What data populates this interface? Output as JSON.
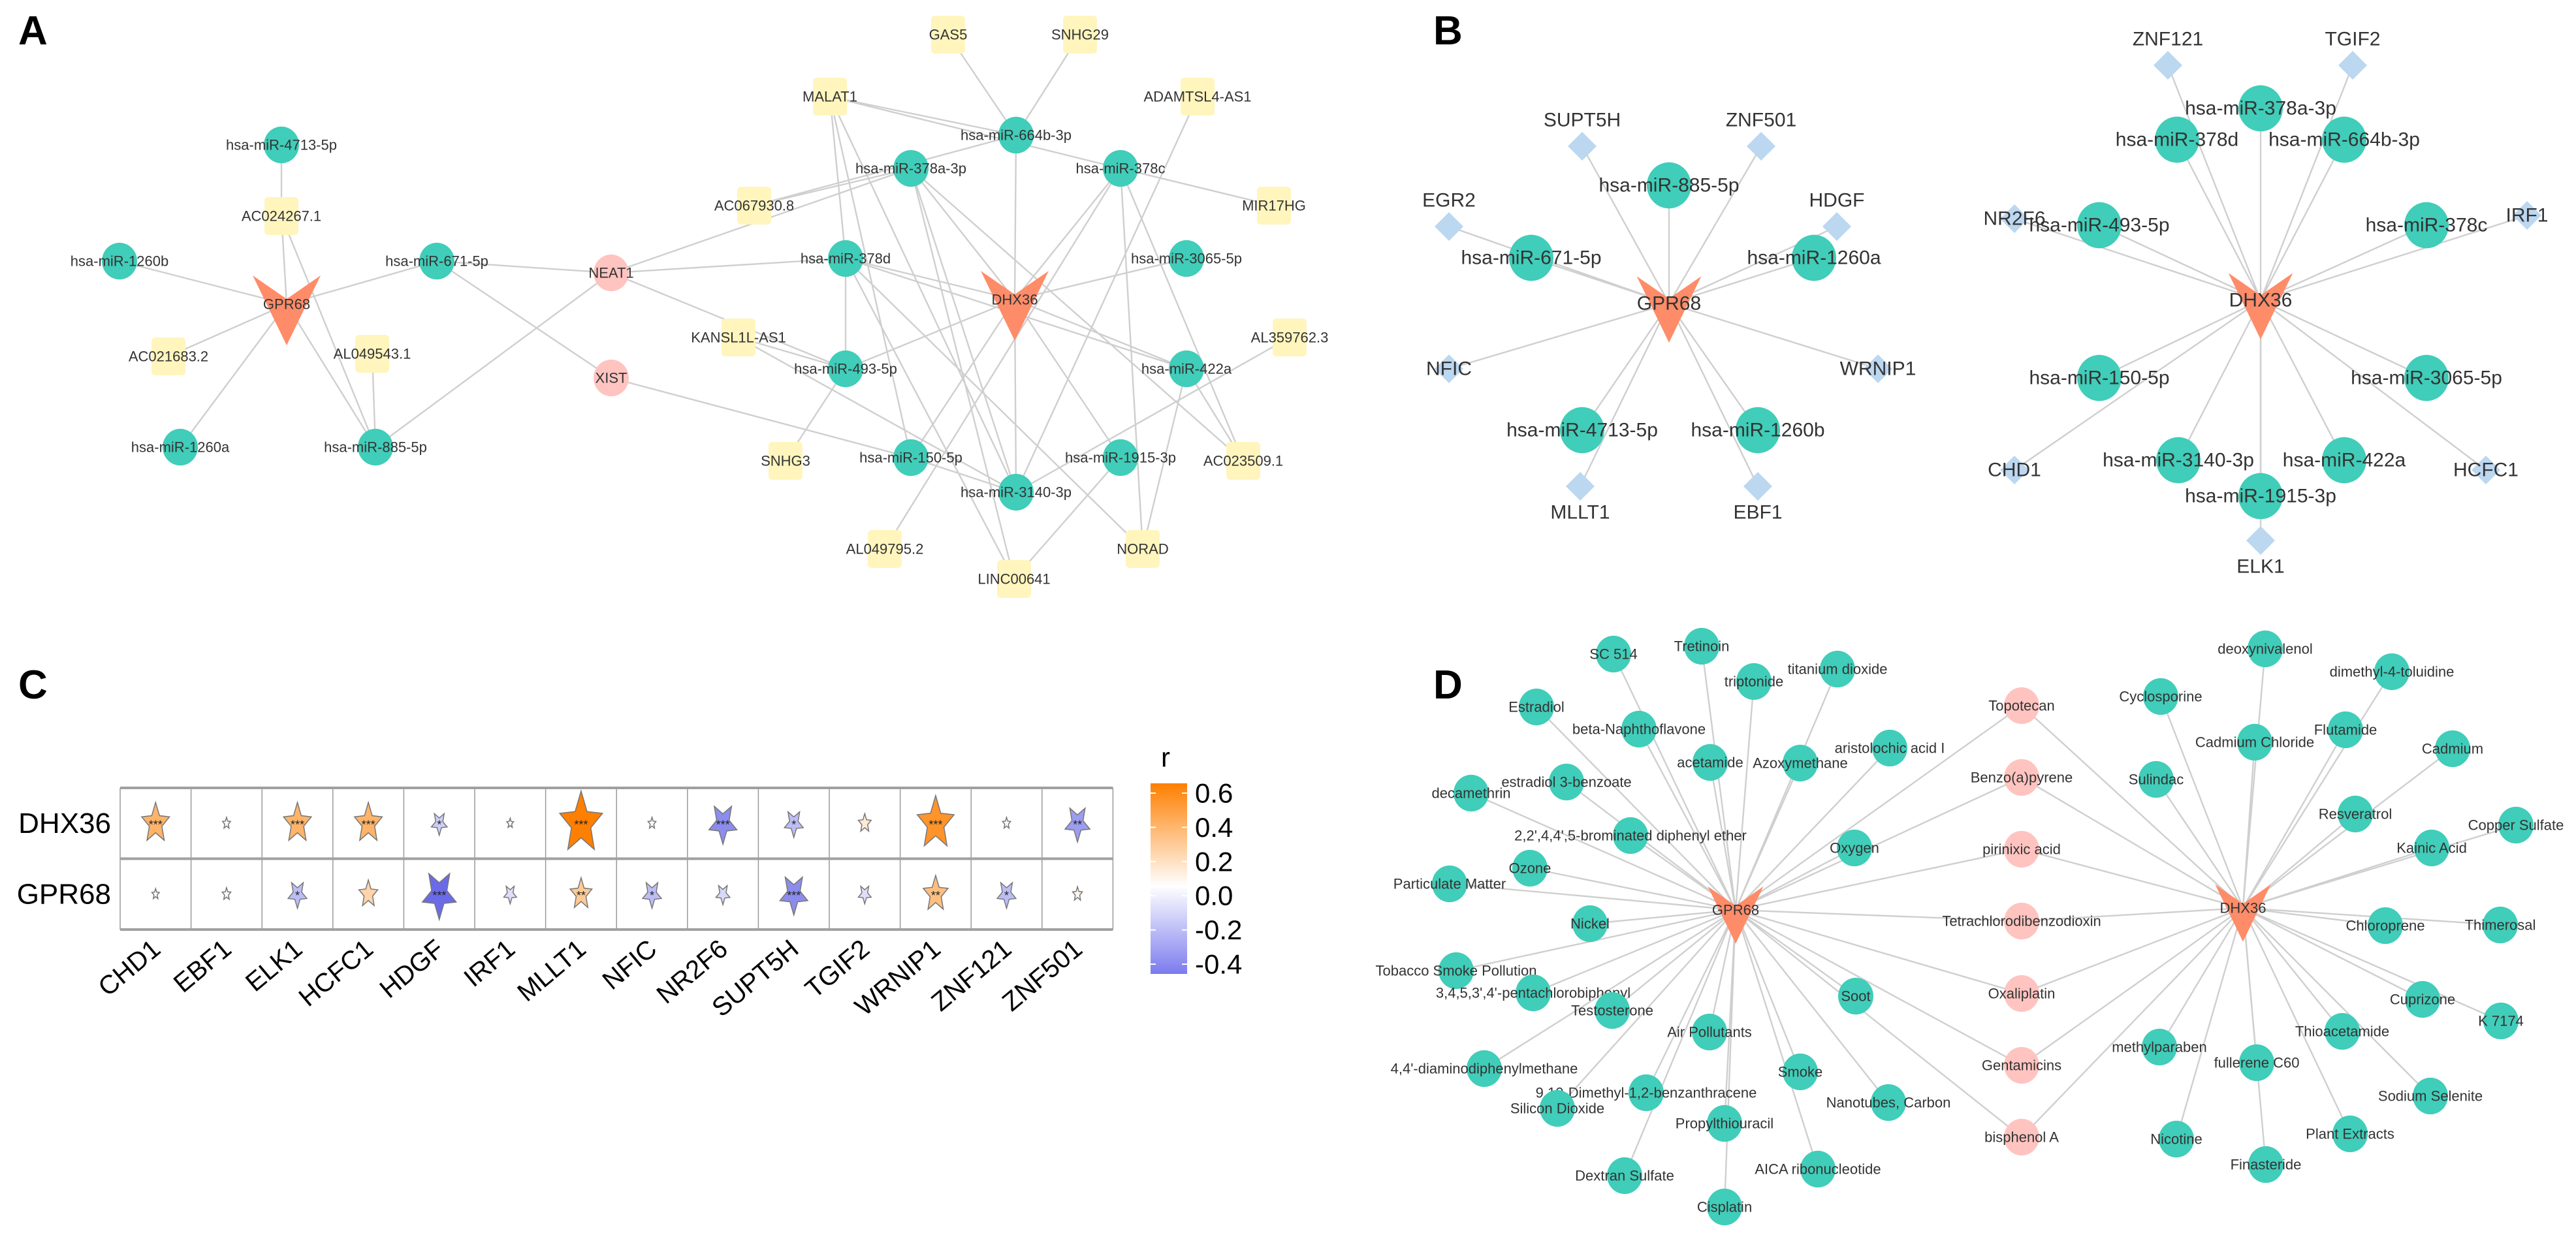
{
  "panel_letters": {
    "a": "A",
    "b": "B",
    "c": "C",
    "d": "D"
  },
  "colors": {
    "hub": "#ff8c69",
    "mirna": "#40cdb9",
    "lncrna": "#fff5bd",
    "shared": "#ffc4c0",
    "tf": "#bcd7f0",
    "chemical": "#40cdb9",
    "edge": "#cfcfcf",
    "positive": "#ff7f00",
    "negative": "#6b6be8"
  },
  "panelA": {
    "nodes": [
      {
        "id": "GPR68",
        "type": "hub"
      },
      {
        "id": "DHX36",
        "type": "hub"
      },
      {
        "id": "hsa-miR-4713-5p",
        "type": "mirna"
      },
      {
        "id": "hsa-miR-1260b",
        "type": "mirna"
      },
      {
        "id": "hsa-miR-671-5p",
        "type": "mirna"
      },
      {
        "id": "hsa-miR-1260a",
        "type": "mirna"
      },
      {
        "id": "hsa-miR-885-5p",
        "type": "mirna"
      },
      {
        "id": "AC024267.1",
        "type": "lncrna"
      },
      {
        "id": "AC021683.2",
        "type": "lncrna"
      },
      {
        "id": "AL049543.1",
        "type": "lncrna"
      },
      {
        "id": "NEAT1",
        "type": "shared"
      },
      {
        "id": "XIST",
        "type": "shared"
      },
      {
        "id": "GAS5",
        "type": "lncrna"
      },
      {
        "id": "SNHG29",
        "type": "lncrna"
      },
      {
        "id": "MALAT1",
        "type": "lncrna"
      },
      {
        "id": "ADAMTSL4-AS1",
        "type": "lncrna"
      },
      {
        "id": "AC067930.8",
        "type": "lncrna"
      },
      {
        "id": "MIR17HG",
        "type": "lncrna"
      },
      {
        "id": "KANSL1L-AS1",
        "type": "lncrna"
      },
      {
        "id": "AL359762.3",
        "type": "lncrna"
      },
      {
        "id": "SNHG3",
        "type": "lncrna"
      },
      {
        "id": "AC023509.1",
        "type": "lncrna"
      },
      {
        "id": "AL049795.2",
        "type": "lncrna"
      },
      {
        "id": "NORAD",
        "type": "lncrna"
      },
      {
        "id": "LINC00641",
        "type": "lncrna"
      },
      {
        "id": "hsa-miR-664b-3p",
        "type": "mirna"
      },
      {
        "id": "hsa-miR-378a-3p",
        "type": "mirna"
      },
      {
        "id": "hsa-miR-378c",
        "type": "mirna"
      },
      {
        "id": "hsa-miR-378d",
        "type": "mirna"
      },
      {
        "id": "hsa-miR-3065-5p",
        "type": "mirna"
      },
      {
        "id": "hsa-miR-493-5p",
        "type": "mirna"
      },
      {
        "id": "hsa-miR-422a",
        "type": "mirna"
      },
      {
        "id": "hsa-miR-150-5p",
        "type": "mirna"
      },
      {
        "id": "hsa-miR-1915-3p",
        "type": "mirna"
      },
      {
        "id": "hsa-miR-3140-3p",
        "type": "mirna"
      }
    ],
    "edges": [
      [
        "GPR68",
        "hsa-miR-1260b"
      ],
      [
        "GPR68",
        "hsa-miR-671-5p"
      ],
      [
        "GPR68",
        "hsa-miR-1260a"
      ],
      [
        "GPR68",
        "hsa-miR-885-5p"
      ],
      [
        "GPR68",
        "AC024267.1"
      ],
      [
        "GPR68",
        "AC021683.2"
      ],
      [
        "AC024267.1",
        "hsa-miR-4713-5p"
      ],
      [
        "AC024267.1",
        "hsa-miR-885-5p"
      ],
      [
        "AL049543.1",
        "hsa-miR-885-5p"
      ],
      [
        "hsa-miR-671-5p",
        "NEAT1"
      ],
      [
        "hsa-miR-671-5p",
        "XIST"
      ],
      [
        "NEAT1",
        "hsa-miR-885-5p"
      ],
      [
        "NEAT1",
        "hsa-miR-378a-3p"
      ],
      [
        "NEAT1",
        "hsa-miR-493-5p"
      ],
      [
        "NEAT1",
        "hsa-miR-378d"
      ],
      [
        "XIST",
        "hsa-miR-150-5p"
      ],
      [
        "DHX36",
        "hsa-miR-664b-3p"
      ],
      [
        "DHX36",
        "hsa-miR-378a-3p"
      ],
      [
        "DHX36",
        "hsa-miR-378c"
      ],
      [
        "DHX36",
        "hsa-miR-378d"
      ],
      [
        "DHX36",
        "hsa-miR-3065-5p"
      ],
      [
        "DHX36",
        "hsa-miR-493-5p"
      ],
      [
        "DHX36",
        "hsa-miR-422a"
      ],
      [
        "DHX36",
        "hsa-miR-150-5p"
      ],
      [
        "DHX36",
        "hsa-miR-1915-3p"
      ],
      [
        "DHX36",
        "hsa-miR-3140-3p"
      ],
      [
        "GAS5",
        "hsa-miR-664b-3p"
      ],
      [
        "SNHG29",
        "hsa-miR-664b-3p"
      ],
      [
        "MALAT1",
        "hsa-miR-664b-3p"
      ],
      [
        "MALAT1",
        "hsa-miR-378c"
      ],
      [
        "MALAT1",
        "hsa-miR-378d"
      ],
      [
        "MALAT1",
        "hsa-miR-150-5p"
      ],
      [
        "MALAT1",
        "hsa-miR-3140-3p"
      ],
      [
        "ADAMTSL4-AS1",
        "hsa-miR-3140-3p"
      ],
      [
        "AC067930.8",
        "hsa-miR-664b-3p"
      ],
      [
        "AC067930.8",
        "hsa-miR-378a-3p"
      ],
      [
        "MIR17HG",
        "hsa-miR-378c"
      ],
      [
        "hsa-miR-378a-3p",
        "LINC00641"
      ],
      [
        "hsa-miR-378a-3p",
        "AC023509.1"
      ],
      [
        "hsa-miR-378a-3p",
        "hsa-miR-3140-3p"
      ],
      [
        "hsa-miR-378c",
        "NORAD"
      ],
      [
        "hsa-miR-378c",
        "AC023509.1"
      ],
      [
        "hsa-miR-378c",
        "AL049795.2"
      ],
      [
        "hsa-miR-378d",
        "hsa-miR-493-5p"
      ],
      [
        "hsa-miR-378d",
        "LINC00641"
      ],
      [
        "hsa-miR-378d",
        "NORAD"
      ],
      [
        "hsa-miR-378d",
        "hsa-miR-422a"
      ],
      [
        "KANSL1L-AS1",
        "hsa-miR-493-5p"
      ],
      [
        "KANSL1L-AS1",
        "hsa-miR-3140-3p"
      ],
      [
        "AL359762.3",
        "hsa-miR-3140-3p"
      ],
      [
        "hsa-miR-422a",
        "AC023509.1"
      ],
      [
        "hsa-miR-422a",
        "NORAD"
      ],
      [
        "SNHG3",
        "hsa-miR-493-5p"
      ],
      [
        "hsa-miR-150-5p",
        "hsa-miR-3140-3p"
      ],
      [
        "hsa-miR-1915-3p",
        "LINC00641"
      ]
    ]
  },
  "panelB": {
    "nodes": [
      {
        "id": "GPR68",
        "type": "hub"
      },
      {
        "id": "SUPT5H",
        "type": "tf"
      },
      {
        "id": "ZNF501",
        "type": "tf"
      },
      {
        "id": "EGR2",
        "type": "tf"
      },
      {
        "id": "HDGF",
        "type": "tf"
      },
      {
        "id": "NFIC",
        "type": "tf"
      },
      {
        "id": "WRNIP1",
        "type": "tf"
      },
      {
        "id": "MLLT1",
        "type": "tf"
      },
      {
        "id": "EBF1",
        "type": "tf"
      },
      {
        "id": "hsa-miR-885-5p",
        "type": "mirna"
      },
      {
        "id": "hsa-miR-671-5p",
        "type": "mirna"
      },
      {
        "id": "hsa-miR-1260a",
        "type": "mirna"
      },
      {
        "id": "hsa-miR-4713-5p",
        "type": "mirna"
      },
      {
        "id": "hsa-miR-1260b",
        "type": "mirna"
      },
      {
        "id": "DHX36",
        "type": "hub"
      },
      {
        "id": "ZNF121",
        "type": "tf"
      },
      {
        "id": "TGIF2",
        "type": "tf"
      },
      {
        "id": "NR2F6",
        "type": "tf"
      },
      {
        "id": "IRF1",
        "type": "tf"
      },
      {
        "id": "CHD1",
        "type": "tf"
      },
      {
        "id": "HCFC1",
        "type": "tf"
      },
      {
        "id": "ELK1",
        "type": "tf"
      },
      {
        "id": "hsa-miR-378a-3p",
        "type": "mirna"
      },
      {
        "id": "hsa-miR-378d",
        "type": "mirna"
      },
      {
        "id": "hsa-miR-664b-3p",
        "type": "mirna"
      },
      {
        "id": "hsa-miR-493-5p",
        "type": "mirna"
      },
      {
        "id": "hsa-miR-378c",
        "type": "mirna"
      },
      {
        "id": "hsa-miR-150-5p",
        "type": "mirna"
      },
      {
        "id": "hsa-miR-3065-5p",
        "type": "mirna"
      },
      {
        "id": "hsa-miR-3140-3p",
        "type": "mirna"
      },
      {
        "id": "hsa-miR-422a",
        "type": "mirna"
      },
      {
        "id": "hsa-miR-1915-3p",
        "type": "mirna"
      }
    ],
    "edges": [
      [
        "GPR68",
        "SUPT5H"
      ],
      [
        "GPR68",
        "ZNF501"
      ],
      [
        "GPR68",
        "EGR2"
      ],
      [
        "GPR68",
        "HDGF"
      ],
      [
        "GPR68",
        "NFIC"
      ],
      [
        "GPR68",
        "WRNIP1"
      ],
      [
        "GPR68",
        "MLLT1"
      ],
      [
        "GPR68",
        "EBF1"
      ],
      [
        "GPR68",
        "hsa-miR-885-5p"
      ],
      [
        "GPR68",
        "hsa-miR-671-5p"
      ],
      [
        "GPR68",
        "hsa-miR-1260a"
      ],
      [
        "GPR68",
        "hsa-miR-4713-5p"
      ],
      [
        "GPR68",
        "hsa-miR-1260b"
      ],
      [
        "DHX36",
        "ZNF121"
      ],
      [
        "DHX36",
        "TGIF2"
      ],
      [
        "DHX36",
        "NR2F6"
      ],
      [
        "DHX36",
        "IRF1"
      ],
      [
        "DHX36",
        "CHD1"
      ],
      [
        "DHX36",
        "HCFC1"
      ],
      [
        "DHX36",
        "ELK1"
      ],
      [
        "DHX36",
        "hsa-miR-378a-3p"
      ],
      [
        "DHX36",
        "hsa-miR-378d"
      ],
      [
        "DHX36",
        "hsa-miR-664b-3p"
      ],
      [
        "DHX36",
        "hsa-miR-493-5p"
      ],
      [
        "DHX36",
        "hsa-miR-378c"
      ],
      [
        "DHX36",
        "hsa-miR-150-5p"
      ],
      [
        "DHX36",
        "hsa-miR-3065-5p"
      ],
      [
        "DHX36",
        "hsa-miR-3140-3p"
      ],
      [
        "DHX36",
        "hsa-miR-422a"
      ],
      [
        "DHX36",
        "hsa-miR-1915-3p"
      ]
    ]
  },
  "chart_data": {
    "type": "heatmap",
    "title": "",
    "legend_title": "r",
    "rows": [
      "DHX36",
      "GPR68"
    ],
    "columns": [
      "CHD1",
      "EBF1",
      "ELK1",
      "HCFC1",
      "HDGF",
      "IRF1",
      "MLLT1",
      "NFIC",
      "NR2F6",
      "SUPT5H",
      "TGIF2",
      "WRNIP1",
      "ZNF121",
      "ZNF501"
    ],
    "values": [
      [
        0.35,
        0.02,
        0.35,
        0.35,
        -0.15,
        0.0,
        0.6,
        0.02,
        -0.35,
        -0.2,
        0.1,
        0.5,
        0.02,
        -0.3
      ],
      [
        0.01,
        0.03,
        -0.2,
        0.2,
        -0.45,
        -0.1,
        0.25,
        -0.2,
        -0.12,
        -0.35,
        -0.1,
        0.3,
        -0.2,
        0.05
      ]
    ],
    "significance": [
      [
        "***",
        "",
        "***",
        "***",
        "*",
        "",
        "***",
        "",
        "***",
        "*",
        "",
        "***",
        "",
        "**"
      ],
      [
        "",
        "",
        "*",
        "",
        "***",
        "",
        "**",
        "*",
        "",
        "***",
        "",
        "**",
        "*",
        ""
      ]
    ],
    "color_range": [
      -0.45,
      0.6
    ],
    "legend_ticks": [
      {
        "value": 0.6,
        "label": "0.6"
      },
      {
        "value": 0.4,
        "label": "0.4"
      },
      {
        "value": 0.2,
        "label": "0.2"
      },
      {
        "value": 0.0,
        "label": "0.0"
      },
      {
        "value": -0.2,
        "label": "-0.2"
      },
      {
        "value": -0.4,
        "label": "-0.4"
      }
    ],
    "legend_placement": "right"
  },
  "panelD": {
    "nodes": [
      {
        "id": "GPR68",
        "type": "hub"
      },
      {
        "id": "DHX36",
        "type": "hub"
      },
      {
        "id": "SC 514",
        "type": "chemical"
      },
      {
        "id": "Tretinoin",
        "type": "chemical"
      },
      {
        "id": "titanium dioxide",
        "type": "chemical"
      },
      {
        "id": "triptonide",
        "type": "chemical"
      },
      {
        "id": "Estradiol",
        "type": "chemical"
      },
      {
        "id": "beta-Naphthoflavone",
        "type": "chemical"
      },
      {
        "id": "acetamide",
        "type": "chemical"
      },
      {
        "id": "Azoxymethane",
        "type": "chemical"
      },
      {
        "id": "aristolochic acid I",
        "type": "chemical"
      },
      {
        "id": "estradiol 3-benzoate",
        "type": "chemical"
      },
      {
        "id": "decamethrin",
        "type": "chemical"
      },
      {
        "id": "2,2',4,4',5-brominated diphenyl ether",
        "type": "chemical"
      },
      {
        "id": "Ozone",
        "type": "chemical"
      },
      {
        "id": "Particulate Matter",
        "type": "chemical"
      },
      {
        "id": "Oxygen",
        "type": "chemical"
      },
      {
        "id": "Nickel",
        "type": "chemical"
      },
      {
        "id": "Tobacco Smoke Pollution",
        "type": "chemical"
      },
      {
        "id": "3,4,5,3',4'-pentachlorobiphenyl",
        "type": "chemical"
      },
      {
        "id": "Testosterone",
        "type": "chemical"
      },
      {
        "id": "Soot",
        "type": "chemical"
      },
      {
        "id": "Air Pollutants",
        "type": "chemical"
      },
      {
        "id": "4,4'-diaminodiphenylmethane",
        "type": "chemical"
      },
      {
        "id": "Smoke",
        "type": "chemical"
      },
      {
        "id": "9,10-Dimethyl-1,2-benzanthracene",
        "type": "chemical"
      },
      {
        "id": "Silicon Dioxide",
        "type": "chemical"
      },
      {
        "id": "Nanotubes, Carbon",
        "type": "chemical"
      },
      {
        "id": "Propylthiouracil",
        "type": "chemical"
      },
      {
        "id": "Dextran Sulfate",
        "type": "chemical"
      },
      {
        "id": "AICA ribonucleotide",
        "type": "chemical"
      },
      {
        "id": "Cisplatin",
        "type": "chemical"
      },
      {
        "id": "Topotecan",
        "type": "shared"
      },
      {
        "id": "Benzo(a)pyrene",
        "type": "shared"
      },
      {
        "id": "pirinixic acid",
        "type": "shared"
      },
      {
        "id": "Tetrachlorodibenzodioxin",
        "type": "shared"
      },
      {
        "id": "Oxaliplatin",
        "type": "shared"
      },
      {
        "id": "Gentamicins",
        "type": "shared"
      },
      {
        "id": "bisphenol A",
        "type": "shared"
      },
      {
        "id": "deoxynivalenol",
        "type": "chemical"
      },
      {
        "id": "dimethyl-4-toluidine",
        "type": "chemical"
      },
      {
        "id": "Cyclosporine",
        "type": "chemical"
      },
      {
        "id": "Cadmium Chloride",
        "type": "chemical"
      },
      {
        "id": "Flutamide",
        "type": "chemical"
      },
      {
        "id": "Cadmium",
        "type": "chemical"
      },
      {
        "id": "Sulindac",
        "type": "chemical"
      },
      {
        "id": "Resveratrol",
        "type": "chemical"
      },
      {
        "id": "Copper Sulfate",
        "type": "chemical"
      },
      {
        "id": "Kainic Acid",
        "type": "chemical"
      },
      {
        "id": "Chloroprene",
        "type": "chemical"
      },
      {
        "id": "Thimerosal",
        "type": "chemical"
      },
      {
        "id": "Cuprizone",
        "type": "chemical"
      },
      {
        "id": "K 7174",
        "type": "chemical"
      },
      {
        "id": "Thioacetamide",
        "type": "chemical"
      },
      {
        "id": "methylparaben",
        "type": "chemical"
      },
      {
        "id": "fullerene C60",
        "type": "chemical"
      },
      {
        "id": "Sodium Selenite",
        "type": "chemical"
      },
      {
        "id": "Plant Extracts",
        "type": "chemical"
      },
      {
        "id": "Nicotine",
        "type": "chemical"
      },
      {
        "id": "Finasteride",
        "type": "chemical"
      }
    ],
    "hub_links": {
      "GPR68": [
        "SC 514",
        "Tretinoin",
        "titanium dioxide",
        "triptonide",
        "Estradiol",
        "beta-Naphthoflavone",
        "acetamide",
        "Azoxymethane",
        "aristolochic acid I",
        "estradiol 3-benzoate",
        "decamethrin",
        "2,2',4,4',5-brominated diphenyl ether",
        "Ozone",
        "Particulate Matter",
        "Oxygen",
        "Nickel",
        "Tobacco Smoke Pollution",
        "3,4,5,3',4'-pentachlorobiphenyl",
        "Testosterone",
        "Soot",
        "Air Pollutants",
        "4,4'-diaminodiphenylmethane",
        "Smoke",
        "9,10-Dimethyl-1,2-benzanthracene",
        "Silicon Dioxide",
        "Nanotubes, Carbon",
        "Propylthiouracil",
        "Dextran Sulfate",
        "AICA ribonucleotide",
        "Cisplatin",
        "Topotecan",
        "Benzo(a)pyrene",
        "pirinixic acid",
        "Tetrachlorodibenzodioxin",
        "Oxaliplatin",
        "Gentamicins",
        "bisphenol A"
      ],
      "DHX36": [
        "deoxynivalenol",
        "dimethyl-4-toluidine",
        "Cyclosporine",
        "Cadmium Chloride",
        "Flutamide",
        "Cadmium",
        "Sulindac",
        "Resveratrol",
        "Copper Sulfate",
        "Kainic Acid",
        "Chloroprene",
        "Thimerosal",
        "Cuprizone",
        "K 7174",
        "Thioacetamide",
        "methylparaben",
        "fullerene C60",
        "Sodium Selenite",
        "Plant Extracts",
        "Nicotine",
        "Finasteride",
        "Topotecan",
        "Benzo(a)pyrene",
        "pirinixic acid",
        "Tetrachlorodibenzodioxin",
        "Oxaliplatin",
        "Gentamicins",
        "bisphenol A"
      ]
    }
  }
}
